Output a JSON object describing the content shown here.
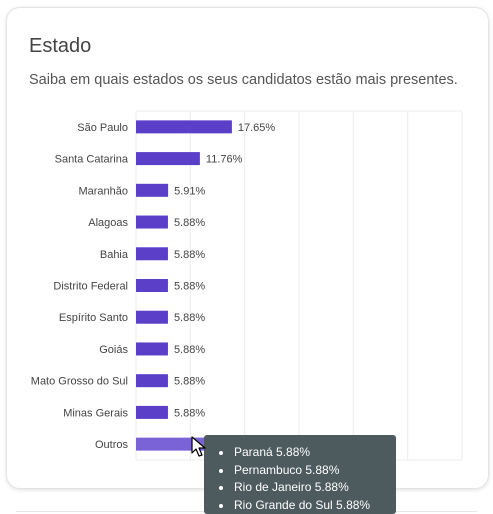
{
  "card": {
    "title": "Estado",
    "subtitle": "Saiba em quais estados os seus candidatos estão mais presentes."
  },
  "colors": {
    "bar": "#5b3fc9",
    "bar_hover": "#7a63d6",
    "grid": "#ececec",
    "tooltip_bg": "#4d5a5e"
  },
  "chart_data": {
    "type": "bar",
    "orientation": "horizontal",
    "categories": [
      "São Paulo",
      "Santa Catarina",
      "Maranhão",
      "Alagoas",
      "Bahia",
      "Distrito Federal",
      "Espírito Santo",
      "Goiás",
      "Mato Grosso do Sul",
      "Minas Gerais",
      "Outros"
    ],
    "values": [
      17.65,
      11.76,
      5.91,
      5.88,
      5.88,
      5.88,
      5.88,
      5.88,
      5.88,
      5.88,
      23.53
    ],
    "data_labels": [
      "17.65%",
      "11.76%",
      "5.91%",
      "5.88%",
      "5.88%",
      "5.88%",
      "5.88%",
      "5.88%",
      "5.88%",
      "5.88%",
      ""
    ],
    "xlim": [
      0,
      60
    ],
    "grid": true,
    "xlabel": "",
    "ylabel": ""
  },
  "tooltip": {
    "items": [
      "Paraná 5.88%",
      "Pernambuco 5.88%",
      "Rio de Janeiro 5.88%",
      "Rio Grande do Sul 5.88%"
    ]
  }
}
